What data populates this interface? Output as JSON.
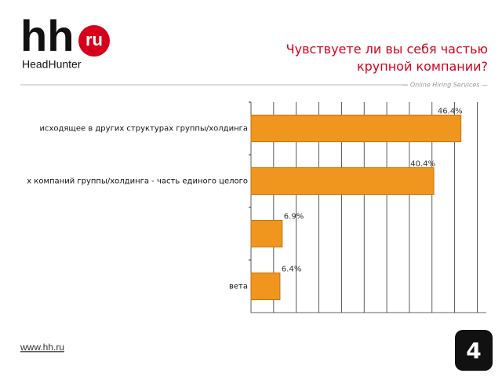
{
  "logo": {
    "mark": "hh",
    "badge": "ru",
    "brand": "HeadHunter"
  },
  "tagline": "— Online Hiring Services —",
  "footer": {
    "link": "www.hh.ru",
    "page_number": "4"
  },
  "chart_data": {
    "type": "hbar",
    "title": "Чувствуете ли вы себя частью крупной компании?",
    "categories": [
      "исходящее в других структурах группы/холдинга",
      "х компаний группы/холдинга - часть единого целого",
      null,
      "вета"
    ],
    "values": [
      46.4,
      40.4,
      6.9,
      6.4
    ],
    "value_labels": [
      "46.4%",
      "40.4%",
      "6.9%",
      "6.4%"
    ],
    "color": "#f0961e",
    "xlim": [
      0,
      52
    ],
    "xticks": [
      0,
      5,
      10,
      15,
      20,
      25,
      30,
      35,
      40,
      45,
      50
    ],
    "grid": true
  }
}
